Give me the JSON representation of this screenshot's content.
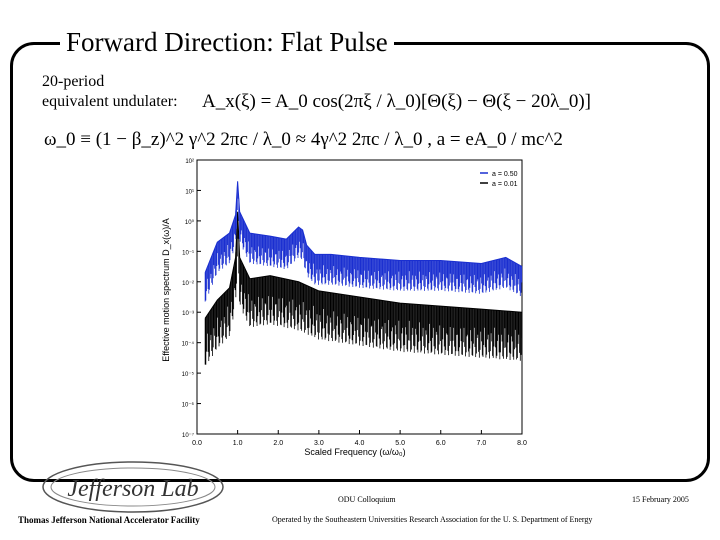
{
  "slide": {
    "title": "Forward Direction: Flat Pulse",
    "intro_line1": "20-period",
    "intro_line2": "equivalent undulater:",
    "eq1": "A_x(ξ) = A_0 cos(2πξ / λ_0)[Θ(ξ) − Θ(ξ − 20λ_0)]",
    "eq2": "ω_0 ≡ (1 − β_z)^2 γ^2 2πc / λ_0 ≈ 4γ^2 2πc / λ_0 ,  a = eA_0 / mc^2"
  },
  "chart_data": {
    "type": "line",
    "title": "",
    "xlabel": "Scaled Frequency (ω/ω₀)",
    "ylabel": "Effective motion spectrum D_x(ω)/A",
    "xlim": [
      0,
      8
    ],
    "ylim_log10": [
      -7,
      2
    ],
    "x_ticks": [
      "0.0",
      "1.0",
      "2.0",
      "3.0",
      "4.0",
      "5.0",
      "6.0",
      "7.0",
      "8.0"
    ],
    "y_ticks": [
      "10²",
      "10¹",
      "10⁰",
      "10⁻¹",
      "10⁻²",
      "10⁻³",
      "10⁻⁴",
      "10⁻⁵",
      "10⁻⁶",
      "10⁻⁷"
    ],
    "legend": [
      {
        "label": "a = 0.50",
        "color": "#1a2fd0"
      },
      {
        "label": "a = 0.01",
        "color": "#000000"
      }
    ],
    "series": [
      {
        "name": "a = 0.50",
        "color": "#1a2fd0",
        "x": [
          0.2,
          0.5,
          0.8,
          0.95,
          1.0,
          1.05,
          1.3,
          1.8,
          2.2,
          2.5,
          2.6,
          2.7,
          2.9,
          3.3,
          4.0,
          5.0,
          6.0,
          7.0,
          7.6,
          8.0
        ],
        "log10_y": [
          -1.7,
          -0.7,
          -0.4,
          0.2,
          1.3,
          0.3,
          -0.4,
          -0.5,
          -0.6,
          -0.2,
          -0.3,
          -0.8,
          -1.1,
          -1.1,
          -1.2,
          -1.3,
          -1.3,
          -1.4,
          -1.2,
          -1.5
        ]
      },
      {
        "name": "a = 0.01",
        "color": "#000000",
        "x": [
          0.2,
          0.5,
          0.8,
          0.95,
          1.0,
          1.05,
          1.3,
          1.8,
          2.5,
          3.0,
          4.0,
          5.0,
          6.0,
          7.0,
          8.0
        ],
        "log10_y": [
          -3.2,
          -2.6,
          -2.2,
          -1.2,
          0.3,
          -1.2,
          -1.9,
          -1.8,
          -2.0,
          -2.3,
          -2.5,
          -2.7,
          -2.8,
          -2.9,
          -3.0
        ]
      }
    ]
  },
  "footer": {
    "center": "ODU Colloquium",
    "date": "15 February 2005",
    "left": "Thomas Jefferson National Accelerator Facility",
    "mid": "Operated by the Southeastern Universities Research Association for the U. S. Department of Energy",
    "logo_text": "Jefferson Lab"
  }
}
